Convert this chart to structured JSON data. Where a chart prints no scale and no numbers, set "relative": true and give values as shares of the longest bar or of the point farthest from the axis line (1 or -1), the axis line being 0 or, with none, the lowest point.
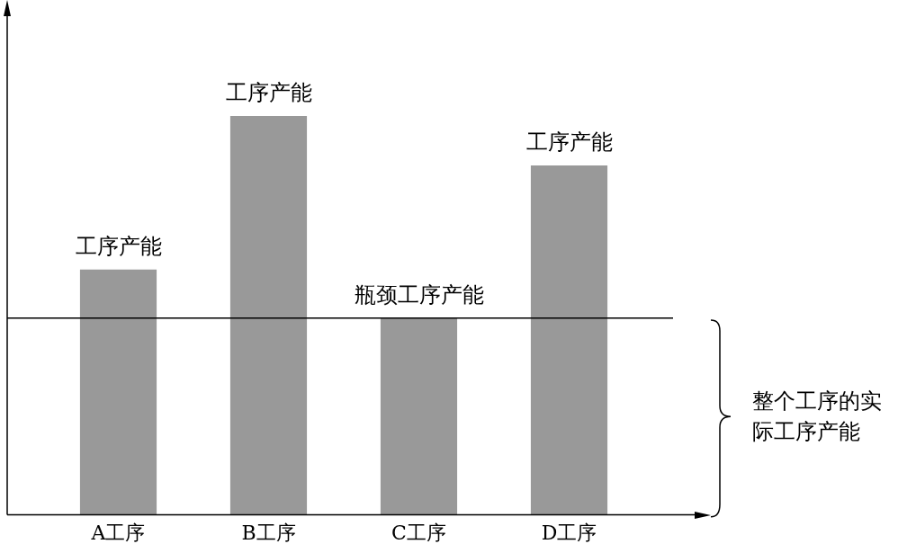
{
  "chart_data": {
    "type": "bar",
    "relative": true,
    "categories": [
      "A工序",
      "B工序",
      "C工序",
      "D工序"
    ],
    "values": [
      0.615,
      1,
      0.493,
      0.876
    ],
    "color": "#999999",
    "ref_lines": [
      {
        "axis": "y",
        "value": 0.493,
        "color": "#000000"
      }
    ],
    "annotations": [
      {
        "text": "工序产能",
        "x": "A工序",
        "y": 0.615
      },
      {
        "text": "工序产能",
        "x": "B工序",
        "y": 1
      },
      {
        "text": "瓶颈工序产能",
        "x": "C工序",
        "y": 0.493
      },
      {
        "text": "工序产能",
        "x": "D工序",
        "y": 0.876
      },
      "整个工序的实际工序产能"
    ],
    "grid": false,
    "legend": false
  }
}
